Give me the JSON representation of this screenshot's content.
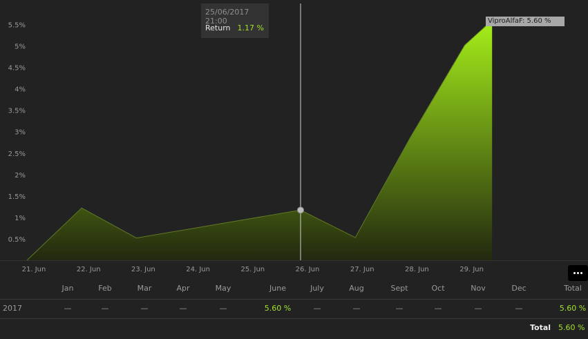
{
  "chart_data": {
    "type": "area",
    "x": [
      "21. Jun",
      "22. Jun",
      "23. Jun",
      "24. Jun",
      "25. Jun",
      "26. Jun",
      "27. Jun",
      "28. Jun",
      "29. Jun"
    ],
    "series": [
      {
        "name": "ViproAlfaF",
        "points": [
          {
            "x": "21. Jun",
            "y": 0.0
          },
          {
            "x": "22. Jun",
            "y": 1.22
          },
          {
            "x": "23. Jun",
            "y": 0.52
          },
          {
            "x": "26. Jun",
            "y": 1.17
          },
          {
            "x": "27. Jun",
            "y": 0.53
          },
          {
            "x": "28. Jun",
            "y": 2.85
          },
          {
            "x": "29. Jun",
            "y": 5.02
          },
          {
            "x": "29. Jun 12:00",
            "y": 5.6
          }
        ]
      }
    ],
    "yticks": [
      "0.5%",
      "1%",
      "1.5%",
      "2%",
      "2.5%",
      "3%",
      "3.5%",
      "4%",
      "4.5%",
      "5%",
      "5.5%"
    ],
    "ylim": [
      0,
      5.6
    ],
    "hover_point": {
      "x": "26. Jun",
      "y": 1.17
    },
    "colors": {
      "area_top": "#a6f01a",
      "area_bottom": "#22280f",
      "line": "#5f7a25"
    }
  },
  "tooltip": {
    "date": "25/06/2017 21:00",
    "label": "Return",
    "value": "1.17 %"
  },
  "end_label": "ViproAlfaF: 5.60 %",
  "table": {
    "months": [
      "Jan",
      "Feb",
      "Mar",
      "Apr",
      "May",
      "June",
      "July",
      "Aug",
      "Sept",
      "Oct",
      "Nov",
      "Dec",
      "Total"
    ],
    "year": "2017",
    "values": [
      "—",
      "—",
      "—",
      "—",
      "—",
      "5.60 %",
      "—",
      "—",
      "—",
      "—",
      "—",
      "—",
      "5.60 %"
    ],
    "total_label": "Total",
    "total_value": "5.60 %"
  },
  "menu_icon": "ellipsis-icon"
}
